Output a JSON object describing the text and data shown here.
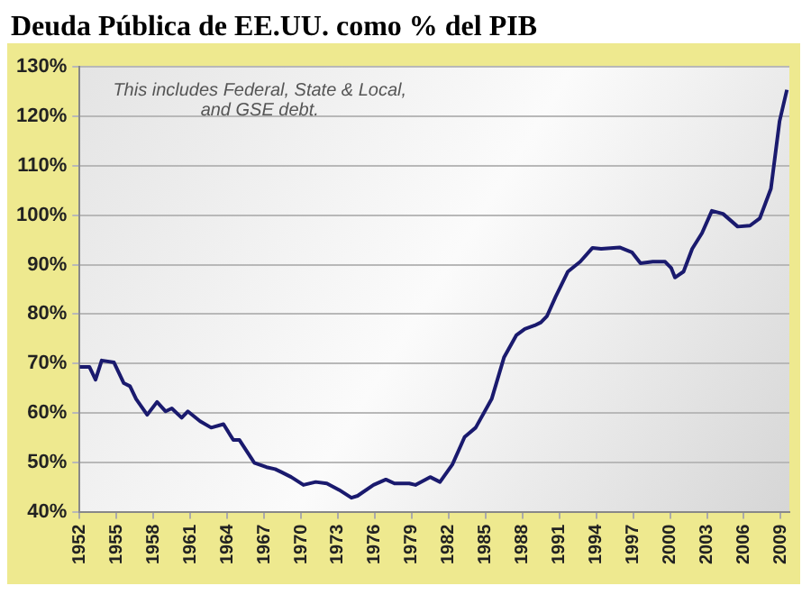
{
  "chart_data": {
    "type": "line",
    "title": "Deuda Pública de EE.UU. como % del PIB",
    "annotations": [
      "This includes Federal, State & Local, and GSE debt."
    ],
    "x": [
      1952.0,
      1952.8,
      1953.3,
      1953.8,
      1954.8,
      1955.6,
      1956.1,
      1956.6,
      1957.5,
      1958.3,
      1959.0,
      1959.5,
      1960.3,
      1960.8,
      1961.8,
      1962.7,
      1963.7,
      1964.5,
      1965.0,
      1966.2,
      1967.2,
      1967.9,
      1968.4,
      1969.2,
      1970.2,
      1971.2,
      1972.1,
      1973.1,
      1974.1,
      1974.6,
      1975.9,
      1976.9,
      1977.6,
      1978.8,
      1979.3,
      1980.5,
      1981.3,
      1982.3,
      1983.3,
      1984.2,
      1985.5,
      1986.5,
      1987.5,
      1988.2,
      1989.0,
      1989.5,
      1990.0,
      1990.7,
      1991.7,
      1992.7,
      1993.7,
      1994.4,
      1995.9,
      1996.9,
      1997.6,
      1998.6,
      1999.6,
      2000.1,
      2000.4,
      2001.1,
      2001.8,
      2002.6,
      2003.4,
      2004.3,
      2005.5,
      2006.5,
      2007.3,
      2008.2,
      2008.9,
      2009.5
    ],
    "series": [
      {
        "color": "#1a1a6e",
        "values": [
          69.3,
          69.3,
          66.7,
          70.6,
          70.2,
          66,
          65.4,
          62.8,
          59.6,
          62.2,
          60.3,
          60.9,
          59,
          60.3,
          58.3,
          57,
          57.7,
          54.5,
          54.5,
          49.9,
          49,
          48.6,
          48,
          47,
          45.4,
          46,
          45.7,
          44.4,
          42.8,
          43.2,
          45.4,
          46.5,
          45.7,
          45.7,
          45.4,
          47,
          46,
          49.5,
          55.1,
          57,
          62.8,
          71.2,
          75.7,
          77,
          77.7,
          78.3,
          79.6,
          83.5,
          88.6,
          90.6,
          93.4,
          93.2,
          93.5,
          92.5,
          90.3,
          90.6,
          90.6,
          89.3,
          87.4,
          88.6,
          93.2,
          96.4,
          100.9,
          100.3,
          97.7,
          97.9,
          99.4,
          105.4,
          119,
          125.4
        ]
      }
    ],
    "xlim": [
      1952,
      2009.7
    ],
    "xticks": [
      1952,
      1955,
      1958,
      1961,
      1964,
      1967,
      1970,
      1973,
      1976,
      1979,
      1982,
      1985,
      1988,
      1991,
      1994,
      1997,
      2000,
      2003,
      2006,
      2009
    ],
    "ylim": [
      40,
      130
    ],
    "yticks": [
      {
        "value": 40,
        "label": "40%"
      },
      {
        "value": 50,
        "label": "50%"
      },
      {
        "value": 60,
        "label": "60%"
      },
      {
        "value": 70,
        "label": "70%"
      },
      {
        "value": 80,
        "label": "80%"
      },
      {
        "value": 90,
        "label": "90%"
      },
      {
        "value": 100,
        "label": "100%"
      },
      {
        "value": 110,
        "label": "110%"
      },
      {
        "value": 120,
        "label": "120%"
      },
      {
        "value": 130,
        "label": "130%"
      }
    ],
    "grid": "y",
    "marker": "none",
    "line_style": "solid",
    "legend": false
  }
}
